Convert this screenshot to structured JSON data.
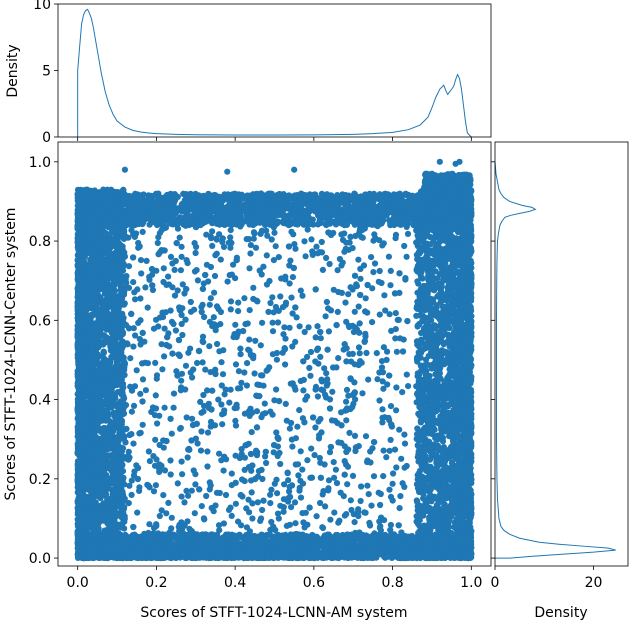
{
  "chart_data": [
    {
      "panel": "top-marginal",
      "type": "histogram-step",
      "ylabel": "Density",
      "xlim": [
        0,
        1
      ],
      "ylim": [
        0,
        10
      ],
      "y_ticks": [
        0,
        5,
        10
      ],
      "color": "#1f77b4",
      "x": [
        0.0,
        0.005,
        0.01,
        0.015,
        0.02,
        0.025,
        0.03,
        0.035,
        0.04,
        0.05,
        0.06,
        0.07,
        0.08,
        0.09,
        0.1,
        0.12,
        0.14,
        0.16,
        0.18,
        0.2,
        0.25,
        0.3,
        0.4,
        0.5,
        0.6,
        0.7,
        0.75,
        0.8,
        0.84,
        0.87,
        0.89,
        0.9,
        0.91,
        0.92,
        0.93,
        0.935,
        0.94,
        0.945,
        0.95,
        0.955,
        0.96,
        0.965,
        0.97,
        0.975,
        0.98,
        0.985,
        0.99,
        1.0
      ],
      "density": [
        5.0,
        6.8,
        8.5,
        9.2,
        9.5,
        9.6,
        9.3,
        8.9,
        8.2,
        6.5,
        4.8,
        3.4,
        2.4,
        1.7,
        1.2,
        0.75,
        0.5,
        0.38,
        0.3,
        0.25,
        0.2,
        0.17,
        0.15,
        0.15,
        0.16,
        0.2,
        0.25,
        0.35,
        0.55,
        0.9,
        1.5,
        2.2,
        3.0,
        3.6,
        3.9,
        3.5,
        3.2,
        3.4,
        3.6,
        3.8,
        4.3,
        4.7,
        4.4,
        3.6,
        2.4,
        1.2,
        0.3,
        0.0
      ]
    },
    {
      "panel": "main-scatter",
      "type": "scatter",
      "xlabel": "Scores of STFT-1024-LCNN-AM system",
      "ylabel": "Scores of STFT-1024-LCNN-Center system",
      "xlim": [
        -0.05,
        1.05
      ],
      "ylim": [
        -0.02,
        1.05
      ],
      "x_ticks": [
        "0.0",
        "0.2",
        "0.4",
        "0.6",
        "0.8",
        "1.0"
      ],
      "y_ticks": [
        "0.0",
        "0.2",
        "0.4",
        "0.6",
        "0.8",
        "1.0"
      ],
      "color": "#1f77b4",
      "points_note": "dense square band: points concentrated along x≈0.0–0.1, x≈0.85–1.0, y≈0.0–0.05, y≈0.85–0.95, sparse scatter inside",
      "sample_count": 14000,
      "outliers": [
        [
          0.12,
          0.98
        ],
        [
          0.38,
          0.975
        ],
        [
          0.55,
          0.98
        ],
        [
          0.92,
          1.0
        ],
        [
          0.97,
          1.0
        ],
        [
          0.96,
          0.995
        ]
      ]
    },
    {
      "panel": "right-marginal",
      "type": "histogram-step-horizontal",
      "xlabel": "Density",
      "xlim": [
        0,
        27
      ],
      "ylim": [
        -0.02,
        1.05
      ],
      "x_ticks": [
        "0",
        "20"
      ],
      "color": "#1f77b4",
      "y": [
        0.0,
        0.005,
        0.01,
        0.015,
        0.02,
        0.025,
        0.03,
        0.035,
        0.04,
        0.05,
        0.06,
        0.07,
        0.08,
        0.1,
        0.15,
        0.2,
        0.3,
        0.4,
        0.5,
        0.6,
        0.7,
        0.75,
        0.8,
        0.82,
        0.84,
        0.85,
        0.86,
        0.865,
        0.87,
        0.875,
        0.88,
        0.885,
        0.89,
        0.9,
        0.91,
        0.92,
        0.93,
        0.95,
        0.97,
        1.0
      ],
      "density": [
        3.0,
        8.0,
        14.0,
        20.0,
        24.5,
        23.0,
        18.0,
        13.0,
        9.0,
        5.0,
        3.0,
        1.8,
        1.2,
        0.8,
        0.5,
        0.4,
        0.3,
        0.3,
        0.3,
        0.3,
        0.35,
        0.4,
        0.5,
        0.7,
        1.0,
        1.4,
        2.0,
        3.2,
        5.0,
        7.0,
        8.2,
        7.5,
        5.5,
        3.0,
        1.8,
        1.2,
        0.8,
        0.5,
        0.2,
        0.0
      ]
    }
  ]
}
